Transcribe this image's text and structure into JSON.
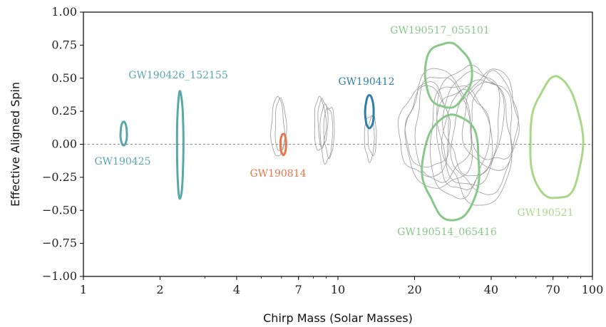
{
  "chart_data": {
    "type": "scatter",
    "title": "",
    "xlabel": "Chirp Mass (Solar Masses)",
    "ylabel": "Effective Aligned Spin",
    "xscale": "log",
    "xlim": [
      1,
      100
    ],
    "ylim": [
      -1.0,
      1.0
    ],
    "x_ticks": [
      1,
      2,
      4,
      7,
      10,
      20,
      40,
      70,
      100
    ],
    "y_ticks": [
      1.0,
      0.75,
      0.5,
      0.25,
      0.0,
      -0.25,
      -0.5,
      -0.75,
      -1.0
    ],
    "y_tick_labels": [
      "1.00",
      "0.75",
      "0.50",
      "0.25",
      "0.00",
      "−0.25",
      "−0.50",
      "−0.75",
      "−1.00"
    ],
    "reference_line": {
      "y": 0.0,
      "style": "dashed"
    },
    "grid": false,
    "highlighted_events": [
      {
        "name": "GW190425",
        "color": "#5ba8a8",
        "chirp_mass": 1.44,
        "chi_eff_range": [
          -0.01,
          0.17
        ]
      },
      {
        "name": "GW190426_152155",
        "color": "#5ba8a8",
        "chirp_mass": 2.4,
        "chi_eff_range": [
          -0.41,
          0.4
        ]
      },
      {
        "name": "GW190814",
        "color": "#e8764a",
        "chirp_mass": 6.1,
        "chi_eff_range": [
          -0.08,
          0.08
        ]
      },
      {
        "name": "GW190412",
        "color": "#2f7ea8",
        "chirp_mass": 13.3,
        "chi_eff_range": [
          0.12,
          0.37
        ]
      },
      {
        "name": "GW190517_055101",
        "color": "#88c888",
        "chirp_mass": 27,
        "chi_eff_range": [
          0.28,
          0.77
        ]
      },
      {
        "name": "GW190514_065416",
        "color": "#88c888",
        "chirp_mass": 28,
        "chi_eff_range": [
          -0.57,
          0.23
        ]
      },
      {
        "name": "GW190521",
        "color": "#a8d888",
        "chirp_mass": 72,
        "chi_eff_range": [
          -0.43,
          0.49
        ]
      }
    ],
    "background_events": [
      {
        "chirp_mass": 5.8,
        "chi_eff_range": [
          -0.1,
          0.35
        ]
      },
      {
        "chirp_mass": 8.5,
        "chi_eff_range": [
          -0.05,
          0.35
        ]
      },
      {
        "chirp_mass": 9.0,
        "chi_eff_range": [
          -0.13,
          0.3
        ]
      },
      {
        "chirp_mass": 13.3,
        "chi_eff_range": [
          -0.12,
          0.22
        ]
      },
      {
        "chirp_mass": 22,
        "chi_eff_range": [
          -0.25,
          0.45
        ]
      },
      {
        "chirp_mass": 25,
        "chi_eff_range": [
          -0.35,
          0.55
        ]
      },
      {
        "chirp_mass": 30,
        "chi_eff_range": [
          -0.4,
          0.45
        ]
      },
      {
        "chirp_mass": 33,
        "chi_eff_range": [
          -0.3,
          0.6
        ]
      },
      {
        "chirp_mass": 36,
        "chi_eff_range": [
          -0.45,
          0.5
        ]
      },
      {
        "chirp_mass": 40,
        "chi_eff_range": [
          -0.2,
          0.55
        ]
      }
    ]
  }
}
